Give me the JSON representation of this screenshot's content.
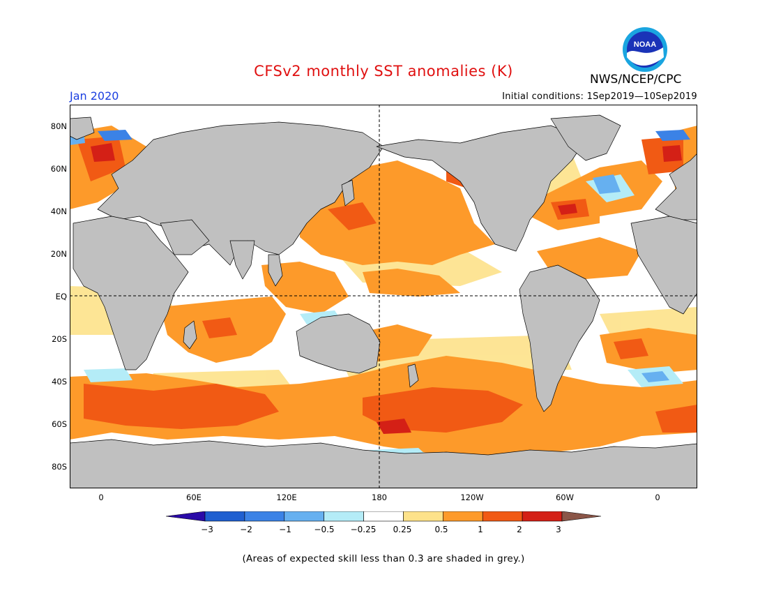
{
  "header": {
    "title": "CFSv2 monthly SST anomalies (K)",
    "agency": "NWS/NCEP/CPC",
    "logo_text": "NOAA",
    "period": "Jan 2020",
    "initial_conditions": "Initial conditions: 1Sep2019—10Sep2019"
  },
  "map": {
    "lat_labels": [
      "80N",
      "60N",
      "40N",
      "20N",
      "EQ",
      "20S",
      "40S",
      "60S",
      "80S"
    ],
    "lon_labels": [
      "0",
      "60E",
      "120E",
      "180",
      "120W",
      "60W",
      "0"
    ]
  },
  "colorbar": {
    "tick_labels": [
      "−3",
      "−2",
      "−1",
      "−0.5",
      "−0.25",
      "0.25",
      "0.5",
      "1",
      "2",
      "3"
    ],
    "bins": [
      "<-3",
      "-3..-2",
      "-2..-1",
      "-1..-0.5",
      "-0.5..-0.25",
      "-0.25..0.25",
      "0.25..0.5",
      "0.5..1",
      "1..2",
      "2..3",
      ">3"
    ],
    "colors": [
      "#2a0aa8",
      "#1f5fd0",
      "#3b82e6",
      "#66b0f0",
      "#b4ecf7",
      "#ffffff",
      "#fde28a",
      "#fd9a2a",
      "#f15a14",
      "#d42016",
      "#8b5648"
    ],
    "land_color": "#c0c0c0"
  },
  "footnote": "(Areas of expected skill less than 0.3 are shaded in grey.)"
}
